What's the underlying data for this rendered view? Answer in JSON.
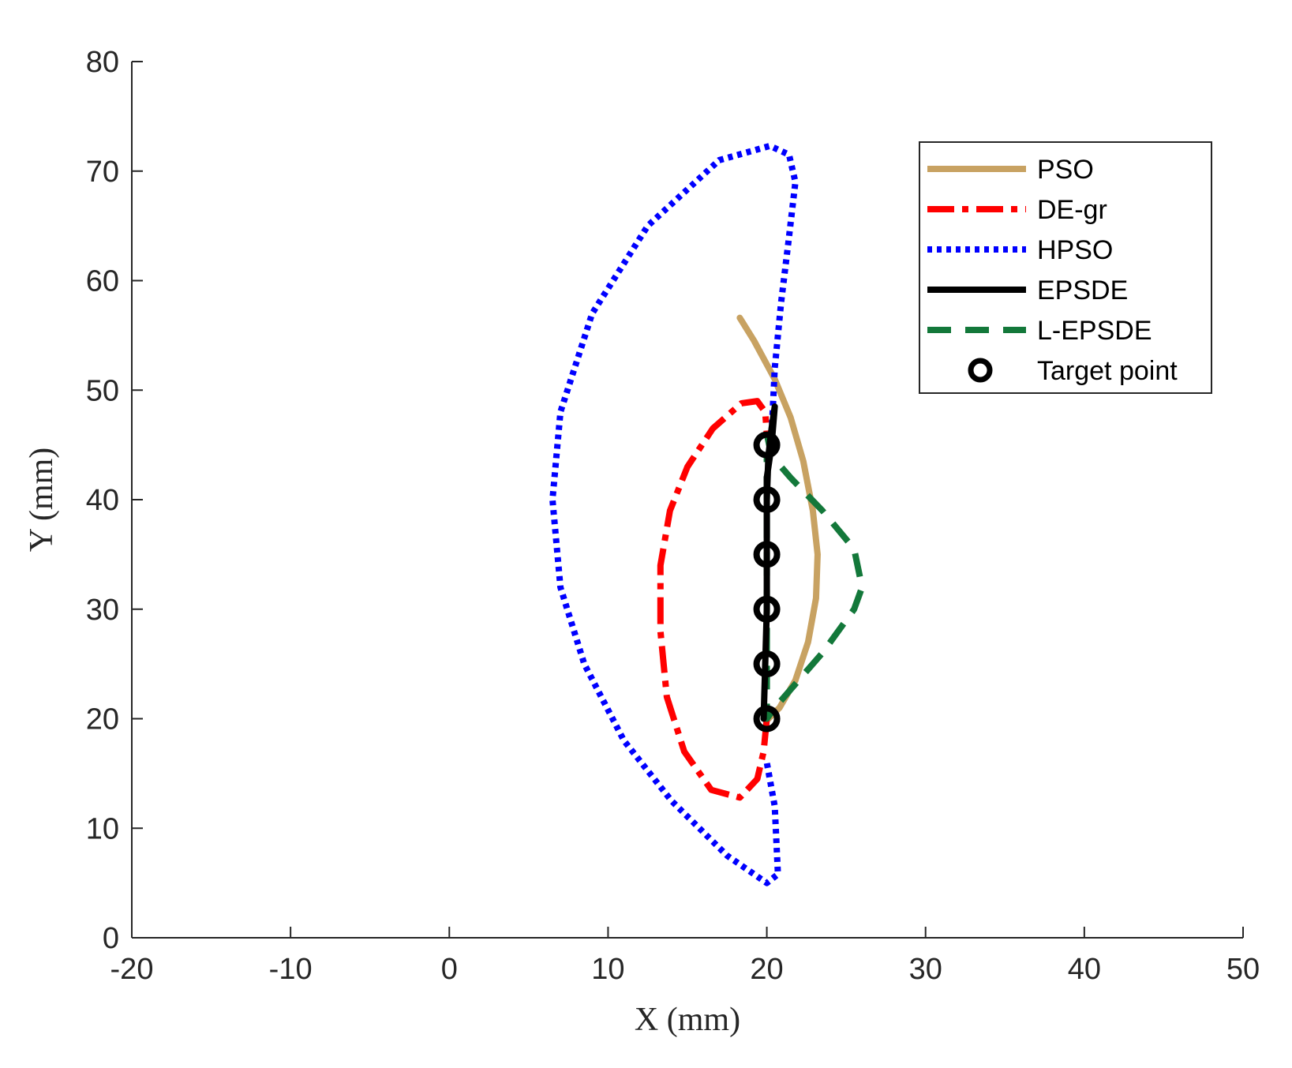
{
  "chart_data": {
    "type": "line",
    "xlabel": "X (mm)",
    "ylabel": "Y (mm)",
    "xlim": [
      -20,
      50
    ],
    "ylim": [
      0,
      80
    ],
    "xticks": [
      "-20",
      "-10",
      "0",
      "10",
      "20",
      "30",
      "40",
      "50"
    ],
    "yticks": [
      "0",
      "10",
      "20",
      "30",
      "40",
      "50",
      "60",
      "70",
      "80"
    ],
    "grid": false,
    "legend_position": "top-right",
    "series": [
      {
        "name": "PSO",
        "color": "#c8a262",
        "style": "solid",
        "points": [
          [
            18.3,
            56.6
          ],
          [
            19.2,
            54.5
          ],
          [
            20.5,
            51.0
          ],
          [
            21.5,
            47.5
          ],
          [
            22.3,
            43.5
          ],
          [
            22.9,
            39.0
          ],
          [
            23.2,
            35.0
          ],
          [
            23.1,
            31.0
          ],
          [
            22.6,
            27.0
          ],
          [
            21.8,
            23.5
          ],
          [
            20.8,
            21.0
          ],
          [
            20.1,
            20.0
          ]
        ]
      },
      {
        "name": "DE-gr",
        "color": "#ff0000",
        "style": "dashdot",
        "points": [
          [
            20.0,
            20.0
          ],
          [
            19.8,
            17.0
          ],
          [
            19.4,
            14.5
          ],
          [
            18.3,
            12.8
          ],
          [
            16.5,
            13.5
          ],
          [
            14.8,
            17.0
          ],
          [
            13.7,
            22.0
          ],
          [
            13.3,
            28.0
          ],
          [
            13.3,
            34.0
          ],
          [
            13.9,
            39.0
          ],
          [
            15.0,
            43.0
          ],
          [
            16.6,
            46.5
          ],
          [
            18.4,
            48.8
          ],
          [
            19.4,
            49.0
          ],
          [
            19.9,
            48.0
          ],
          [
            20.0,
            46.0
          ]
        ]
      },
      {
        "name": "HPSO",
        "color": "#0000ff",
        "style": "dotted",
        "points": [
          [
            20.3,
            46.0
          ],
          [
            20.5,
            52.0
          ],
          [
            20.9,
            58.0
          ],
          [
            21.4,
            64.0
          ],
          [
            21.8,
            69.0
          ],
          [
            21.4,
            71.5
          ],
          [
            20.2,
            72.3
          ],
          [
            17.0,
            71.0
          ],
          [
            12.5,
            65.0
          ],
          [
            9.0,
            57.0
          ],
          [
            7.0,
            48.0
          ],
          [
            6.5,
            40.0
          ],
          [
            7.0,
            32.0
          ],
          [
            8.5,
            25.0
          ],
          [
            11.0,
            18.0
          ],
          [
            14.0,
            12.5
          ],
          [
            17.5,
            7.5
          ],
          [
            20.0,
            5.0
          ],
          [
            20.7,
            5.8
          ],
          [
            20.5,
            12.0
          ],
          [
            20.0,
            16.0
          ]
        ]
      },
      {
        "name": "EPSDE",
        "color": "#000000",
        "style": "solid",
        "points": [
          [
            19.8,
            20.0
          ],
          [
            19.9,
            25.0
          ],
          [
            20.0,
            30.0
          ],
          [
            20.0,
            35.0
          ],
          [
            20.0,
            40.0
          ],
          [
            20.1,
            44.0
          ],
          [
            20.3,
            46.5
          ],
          [
            20.5,
            48.5
          ],
          [
            20.3,
            45.0
          ],
          [
            20.0,
            42.0
          ],
          [
            20.0,
            38.0
          ],
          [
            20.0,
            34.0
          ],
          [
            20.0,
            30.0
          ],
          [
            19.9,
            25.0
          ],
          [
            19.8,
            20.0
          ]
        ]
      },
      {
        "name": "L-EPSDE",
        "color": "#13783a",
        "style": "dashed",
        "points": [
          [
            20.0,
            46.0
          ],
          [
            20.3,
            44.0
          ],
          [
            21.5,
            42.0
          ],
          [
            23.5,
            39.0
          ],
          [
            25.5,
            35.5
          ],
          [
            26.0,
            32.0
          ],
          [
            25.5,
            30.0
          ],
          [
            23.5,
            26.0
          ],
          [
            22.0,
            23.5
          ],
          [
            20.5,
            21.0
          ],
          [
            20.0,
            20.0
          ],
          [
            20.0,
            22.0
          ],
          [
            20.0,
            30.0
          ],
          [
            20.0,
            38.0
          ],
          [
            20.0,
            44.0
          ]
        ]
      },
      {
        "name": "Target point",
        "color": "#000000",
        "style": "marker",
        "points": [
          [
            20,
            20
          ],
          [
            20,
            25
          ],
          [
            20,
            30
          ],
          [
            20,
            35
          ],
          [
            20,
            40
          ],
          [
            20,
            45
          ]
        ]
      }
    ]
  }
}
